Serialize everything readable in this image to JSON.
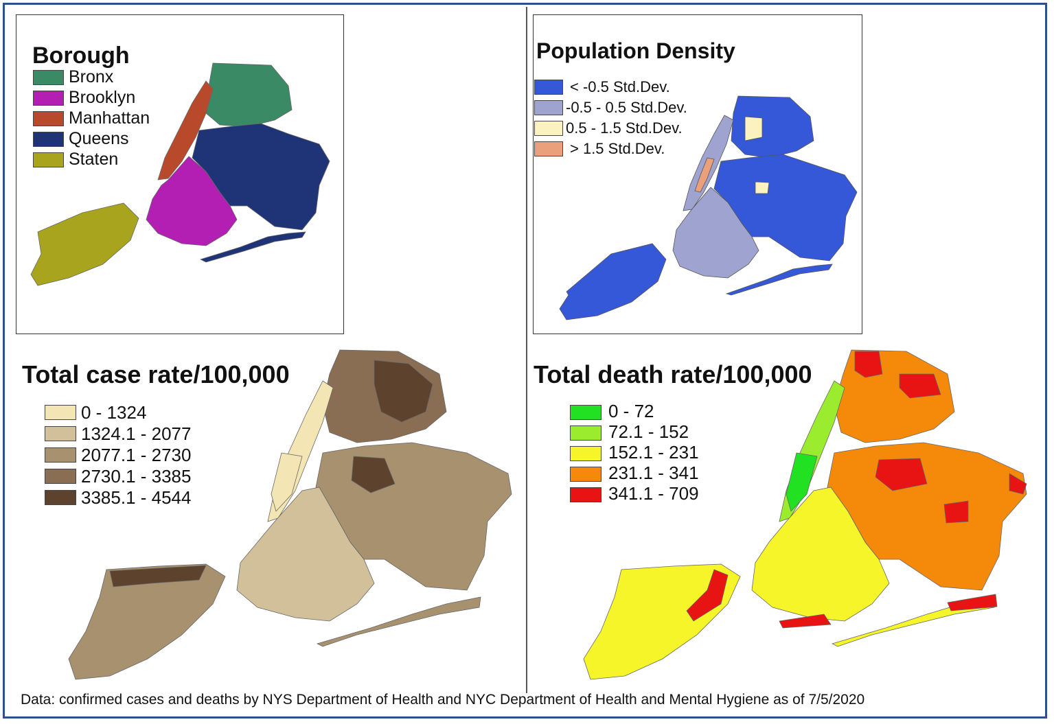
{
  "panels": {
    "borough": {
      "title": "Borough",
      "legend": [
        {
          "label": "Bronx",
          "color": "#3a8a66"
        },
        {
          "label": "Brooklyn",
          "color": "#b31fb3"
        },
        {
          "label": "Manhattan",
          "color": "#b8492a"
        },
        {
          "label": "Queens",
          "color": "#1f3477"
        },
        {
          "label": "Staten",
          "color": "#a8a41d"
        }
      ]
    },
    "density": {
      "title": "Population Density",
      "legend": [
        {
          "label": "< -0.5 Std.Dev.",
          "color": "#3558d8"
        },
        {
          "label": "-0.5 - 0.5 Std.Dev.",
          "color": "#9ea3cf"
        },
        {
          "label": "0.5 - 1.5 Std.Dev.",
          "color": "#fbf2c0"
        },
        {
          "label": "> 1.5 Std.Dev.",
          "color": "#eba07c"
        }
      ]
    },
    "cases": {
      "title": "Total case rate/100,000",
      "legend": [
        {
          "label": "0 - 1324",
          "color": "#f3e6b4"
        },
        {
          "label": "1324.1 - 2077",
          "color": "#d2c09a"
        },
        {
          "label": "2077.1 - 2730",
          "color": "#a8916e"
        },
        {
          "label": "2730.1 - 3385",
          "color": "#8a6e53"
        },
        {
          "label": "3385.1 - 4544",
          "color": "#5d432e"
        }
      ]
    },
    "deaths": {
      "title": "Total death rate/100,000",
      "legend": [
        {
          "label": "0 - 72",
          "color": "#22e022"
        },
        {
          "label": "72.1 - 152",
          "color": "#9bec2e"
        },
        {
          "label": "152.1 - 231",
          "color": "#f5f52a"
        },
        {
          "label": "231.1 - 341",
          "color": "#f58a0a"
        },
        {
          "label": "341.1 - 709",
          "color": "#e81414"
        }
      ]
    }
  },
  "source_note": "Data: confirmed cases and deaths by NYS Department of Health and NYC Department of Health and Mental Hygiene as of 7/5/2020",
  "colors": {
    "frame": "#2f4f8f",
    "borders": "#555555"
  }
}
